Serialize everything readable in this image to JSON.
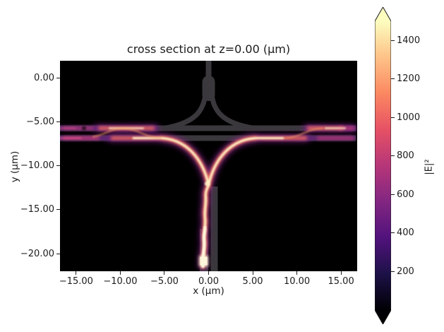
{
  "figure": {
    "title": "cross section at z=0.00 (μm)",
    "xlabel": "x (μm)",
    "ylabel": "y (μm)",
    "colorbar_label": "|E|²"
  },
  "chart_data": {
    "type": "heatmap",
    "title": "cross section at z=0.00 (μm)",
    "xlabel": "x (μm)",
    "ylabel": "y (μm)",
    "xlim": [
      -16.83,
      16.83
    ],
    "ylim": [
      -22.0,
      1.93
    ],
    "x_ticks": [
      -15,
      -10,
      -5,
      0,
      5,
      10,
      15
    ],
    "x_tick_labels": [
      "−15.00",
      "−10.00",
      "−5.00",
      "0.00",
      "5.00",
      "10.00",
      "15.00"
    ],
    "y_ticks": [
      0,
      -5,
      -10,
      -15,
      -20
    ],
    "y_tick_labels": [
      "0.00",
      "−5.00",
      "−10.00",
      "−15.00",
      "−20.00"
    ],
    "grid": false,
    "colormap": "magma",
    "background_value": 0,
    "colorbar": {
      "label": "|E|²",
      "ticks": [
        200,
        400,
        600,
        800,
        1000,
        1200,
        1400
      ],
      "tick_labels": [
        "200",
        "400",
        "600",
        "800",
        "1000",
        "1200",
        "1400"
      ],
      "vmin": 0,
      "vmax": 1500,
      "extend": "both",
      "over_color": "#fcfdbf",
      "under_color": "#000004",
      "position": "right"
    },
    "features": [
      "black background: |E|^2 ~ 0 outside waveguides",
      "gray overlay: waveguide structure - top vertical stem at x=0 from y=+1.9 to y=-2 widening into a taper bulb, then Y-branch curving down to an upper horizontal guide at y=-6.2 spanning the full x range",
      "second (lower) horizontal guide at y=-7.3 spanning the full x range, forming a directional coupler with the upper guide",
      "two vertical guides near x=0 at the bottom from y=-14 to y=-22; light is injected in the left one",
      "bright field (saturated, cream/white ~>1400): input beam at (x=-0.6, y=-21.5) travels up the left bottom guide, wiggling slightly, splits at about y=-7.5 into two bright arms curving left and right into the lower horizontal guide at about x=-5.3 and x=+5.3",
      "along both horizontal directions the power beats between the lower and upper coupler guides (braided orange/pink pattern), decaying to purple near the left and right edges",
      "small bright rectangular source region at approximately x in [-1.0,-0.1], y in [-21.2,-22.0]"
    ]
  },
  "colors": {
    "plot_bg": "#000000",
    "figure_bg": "#ffffff",
    "structure_gray": "#3a383c",
    "text": "#1c1c1c",
    "magma": [
      "#000004",
      "#1d1147",
      "#51127c",
      "#822681",
      "#b63679",
      "#e65164",
      "#fb8861",
      "#fec287",
      "#fcfdbf"
    ],
    "field_core": "#fdf0c6",
    "field_mid": "#ef6a58",
    "field_glow": "#7c2483"
  }
}
